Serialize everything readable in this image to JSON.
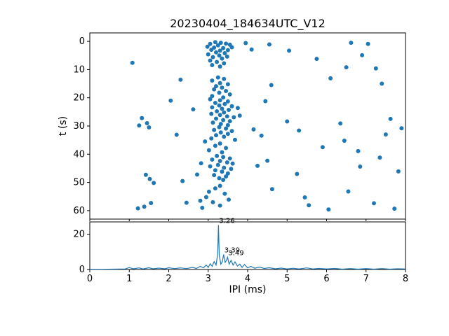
{
  "figure": {
    "title": "20230404_184634UTC_V12",
    "xlabel": "IPI (ms)",
    "ylabel": "t (s)"
  },
  "colors": {
    "series": "#1f77b4",
    "axes": "#000000",
    "background": "#ffffff"
  },
  "chart_data": [
    {
      "type": "scatter",
      "title": "20230404_184634UTC_V12",
      "xlabel": "",
      "ylabel": "t (s)",
      "xlim": [
        0,
        8
      ],
      "ylim": [
        63,
        -3
      ],
      "y_inverted": true,
      "xticks": [
        0,
        1,
        2,
        3,
        4,
        5,
        6,
        7,
        8
      ],
      "yticks": [
        0,
        10,
        20,
        30,
        40,
        50,
        60
      ],
      "points": [
        [
          3.18,
          0.3
        ],
        [
          3.32,
          0.5
        ],
        [
          3.05,
          0.9
        ],
        [
          3.45,
          0.8
        ],
        [
          3.25,
          1.4
        ],
        [
          3.55,
          1.2
        ],
        [
          2.98,
          1.9
        ],
        [
          3.15,
          2.2
        ],
        [
          3.38,
          2.4
        ],
        [
          3.6,
          2.1
        ],
        [
          3.08,
          3.0
        ],
        [
          3.3,
          3.3
        ],
        [
          3.5,
          3.1
        ],
        [
          3.2,
          3.9
        ],
        [
          3.42,
          4.2
        ],
        [
          3.0,
          4.6
        ],
        [
          3.28,
          5.0
        ],
        [
          3.12,
          5.6
        ],
        [
          3.48,
          5.4
        ],
        [
          3.35,
          6.1
        ],
        [
          3.05,
          6.8
        ],
        [
          3.22,
          7.3
        ],
        [
          3.4,
          7.8
        ],
        [
          3.1,
          8.4
        ],
        [
          3.3,
          8.9
        ],
        [
          3.95,
          0.6
        ],
        [
          4.55,
          1.1
        ],
        [
          6.62,
          0.5
        ],
        [
          7.05,
          0.9
        ],
        [
          4.1,
          2.9
        ],
        [
          5.05,
          3.3
        ],
        [
          6.9,
          4.9
        ],
        [
          1.08,
          7.6
        ],
        [
          5.75,
          6.2
        ],
        [
          6.5,
          9.2
        ],
        [
          7.25,
          9.6
        ],
        [
          3.25,
          12.8
        ],
        [
          3.4,
          13.3
        ],
        [
          3.1,
          13.9
        ],
        [
          3.3,
          14.8
        ],
        [
          3.5,
          15.2
        ],
        [
          3.2,
          15.9
        ],
        [
          3.35,
          16.4
        ],
        [
          3.15,
          17.0
        ],
        [
          3.45,
          17.6
        ],
        [
          3.28,
          18.2
        ],
        [
          3.55,
          18.8
        ],
        [
          3.1,
          19.4
        ],
        [
          3.38,
          19.9
        ],
        [
          2.3,
          13.6
        ],
        [
          6.1,
          13.1
        ],
        [
          4.6,
          15.5
        ],
        [
          7.4,
          15.0
        ],
        [
          3.05,
          20.5
        ],
        [
          3.3,
          20.9
        ],
        [
          3.5,
          21.3
        ],
        [
          3.18,
          21.8
        ],
        [
          3.42,
          22.2
        ],
        [
          3.28,
          22.7
        ],
        [
          3.6,
          23.0
        ],
        [
          3.1,
          23.4
        ],
        [
          3.35,
          23.9
        ],
        [
          3.52,
          24.3
        ],
        [
          3.22,
          24.8
        ],
        [
          3.4,
          25.2
        ],
        [
          3.08,
          25.7
        ],
        [
          3.3,
          26.1
        ],
        [
          3.48,
          26.6
        ],
        [
          3.65,
          26.9
        ],
        [
          3.2,
          27.4
        ],
        [
          3.38,
          27.9
        ],
        [
          3.55,
          28.3
        ],
        [
          3.12,
          28.8
        ],
        [
          3.32,
          29.3
        ],
        [
          3.5,
          29.7
        ],
        [
          3.75,
          23.6
        ],
        [
          3.8,
          26.3
        ],
        [
          1.32,
          27.2
        ],
        [
          1.45,
          29.0
        ],
        [
          1.25,
          29.8
        ],
        [
          2.62,
          24.1
        ],
        [
          4.45,
          21.2
        ],
        [
          5.0,
          28.4
        ],
        [
          6.35,
          29.1
        ],
        [
          7.62,
          27.5
        ],
        [
          2.05,
          21.0
        ],
        [
          3.28,
          30.4
        ],
        [
          3.45,
          30.9
        ],
        [
          3.15,
          31.4
        ],
        [
          3.6,
          31.8
        ],
        [
          3.32,
          32.3
        ],
        [
          3.5,
          32.8
        ],
        [
          3.2,
          33.3
        ],
        [
          3.4,
          33.8
        ],
        [
          3.08,
          34.4
        ],
        [
          3.68,
          34.9
        ],
        [
          2.92,
          35.5
        ],
        [
          3.3,
          36.2
        ],
        [
          3.18,
          37.0
        ],
        [
          3.45,
          37.8
        ],
        [
          3.02,
          38.6
        ],
        [
          3.35,
          39.3
        ],
        [
          4.15,
          31.2
        ],
        [
          4.35,
          33.4
        ],
        [
          2.2,
          33.1
        ],
        [
          5.3,
          31.6
        ],
        [
          6.45,
          35.2
        ],
        [
          7.5,
          33.0
        ],
        [
          7.9,
          30.8
        ],
        [
          1.5,
          30.5
        ],
        [
          5.9,
          37.5
        ],
        [
          6.8,
          38.9
        ],
        [
          3.22,
          40.6
        ],
        [
          3.38,
          41.0
        ],
        [
          3.55,
          41.5
        ],
        [
          3.1,
          41.9
        ],
        [
          3.3,
          42.4
        ],
        [
          3.48,
          42.9
        ],
        [
          3.62,
          43.3
        ],
        [
          3.25,
          43.8
        ],
        [
          3.05,
          44.3
        ],
        [
          3.4,
          44.8
        ],
        [
          3.58,
          45.2
        ],
        [
          3.18,
          45.7
        ],
        [
          3.35,
          46.2
        ],
        [
          3.5,
          46.8
        ],
        [
          3.15,
          47.4
        ],
        [
          3.45,
          47.9
        ],
        [
          3.28,
          48.5
        ],
        [
          3.38,
          49.1
        ],
        [
          2.82,
          43.2
        ],
        [
          2.72,
          47.2
        ],
        [
          4.25,
          44.1
        ],
        [
          4.5,
          42.3
        ],
        [
          1.42,
          47.3
        ],
        [
          1.52,
          48.8
        ],
        [
          1.62,
          50.2
        ],
        [
          5.25,
          47.0
        ],
        [
          6.85,
          44.4
        ],
        [
          7.35,
          41.2
        ],
        [
          7.82,
          46.1
        ],
        [
          2.35,
          49.5
        ],
        [
          3.3,
          51.2
        ],
        [
          3.18,
          52.1
        ],
        [
          3.02,
          53.3
        ],
        [
          3.42,
          54.0
        ],
        [
          2.95,
          55.2
        ],
        [
          3.52,
          56.1
        ],
        [
          3.12,
          57.0
        ],
        [
          3.3,
          58.2
        ],
        [
          2.85,
          59.0
        ],
        [
          2.8,
          56.5
        ],
        [
          1.22,
          59.2
        ],
        [
          1.38,
          58.6
        ],
        [
          1.55,
          57.3
        ],
        [
          4.62,
          52.4
        ],
        [
          5.45,
          55.3
        ],
        [
          5.55,
          58.1
        ],
        [
          6.55,
          53.2
        ],
        [
          7.2,
          57.4
        ],
        [
          7.72,
          59.3
        ],
        [
          6.05,
          59.6
        ],
        [
          2.45,
          57.2
        ]
      ]
    },
    {
      "type": "line",
      "title": "",
      "xlabel": "IPI (ms)",
      "ylabel": "",
      "xlim": [
        0,
        8
      ],
      "ylim": [
        0,
        27
      ],
      "xticks": [
        0,
        1,
        2,
        3,
        4,
        5,
        6,
        7,
        8
      ],
      "yticks": [
        0,
        20
      ],
      "annotations": [
        {
          "x": 3.26,
          "y": 25.2,
          "label": "3.26"
        },
        {
          "x": 3.39,
          "y": 8.5,
          "label": "3.39"
        },
        {
          "x": 3.49,
          "y": 7.0,
          "label": "3.49"
        }
      ],
      "points": [
        [
          0,
          0.1
        ],
        [
          0.3,
          0.1
        ],
        [
          0.6,
          0.2
        ],
        [
          0.9,
          0.3
        ],
        [
          1.0,
          1.1
        ],
        [
          1.1,
          0.4
        ],
        [
          1.25,
          0.9
        ],
        [
          1.35,
          0.3
        ],
        [
          1.5,
          1.0
        ],
        [
          1.6,
          0.4
        ],
        [
          1.75,
          0.8
        ],
        [
          1.9,
          0.4
        ],
        [
          2.0,
          1.0
        ],
        [
          2.15,
          0.5
        ],
        [
          2.3,
          0.9
        ],
        [
          2.45,
          0.5
        ],
        [
          2.6,
          1.2
        ],
        [
          2.7,
          0.6
        ],
        [
          2.8,
          1.8
        ],
        [
          2.88,
          0.9
        ],
        [
          2.95,
          2.6
        ],
        [
          3.0,
          1.2
        ],
        [
          3.05,
          3.2
        ],
        [
          3.1,
          1.8
        ],
        [
          3.15,
          4.5
        ],
        [
          3.2,
          2.5
        ],
        [
          3.24,
          9.0
        ],
        [
          3.26,
          25.2
        ],
        [
          3.28,
          8.0
        ],
        [
          3.32,
          3.0
        ],
        [
          3.36,
          4.5
        ],
        [
          3.39,
          8.5
        ],
        [
          3.43,
          4.0
        ],
        [
          3.46,
          5.0
        ],
        [
          3.49,
          7.0
        ],
        [
          3.53,
          3.0
        ],
        [
          3.58,
          5.2
        ],
        [
          3.63,
          2.5
        ],
        [
          3.68,
          4.3
        ],
        [
          3.74,
          2.0
        ],
        [
          3.8,
          3.0
        ],
        [
          3.86,
          1.2
        ],
        [
          3.92,
          2.8
        ],
        [
          4.0,
          0.9
        ],
        [
          4.08,
          1.8
        ],
        [
          4.18,
          0.7
        ],
        [
          4.3,
          1.4
        ],
        [
          4.42,
          0.6
        ],
        [
          4.55,
          1.0
        ],
        [
          4.7,
          0.4
        ],
        [
          4.85,
          0.8
        ],
        [
          5.0,
          0.3
        ],
        [
          5.15,
          0.7
        ],
        [
          5.3,
          0.3
        ],
        [
          5.5,
          0.9
        ],
        [
          5.65,
          0.3
        ],
        [
          5.8,
          0.6
        ],
        [
          6.0,
          0.3
        ],
        [
          6.2,
          0.6
        ],
        [
          6.4,
          0.2
        ],
        [
          6.6,
          0.5
        ],
        [
          6.8,
          0.2
        ],
        [
          7.0,
          0.5
        ],
        [
          7.2,
          0.2
        ],
        [
          7.4,
          0.5
        ],
        [
          7.6,
          0.2
        ],
        [
          7.8,
          0.4
        ],
        [
          8.0,
          0.3
        ]
      ]
    }
  ]
}
